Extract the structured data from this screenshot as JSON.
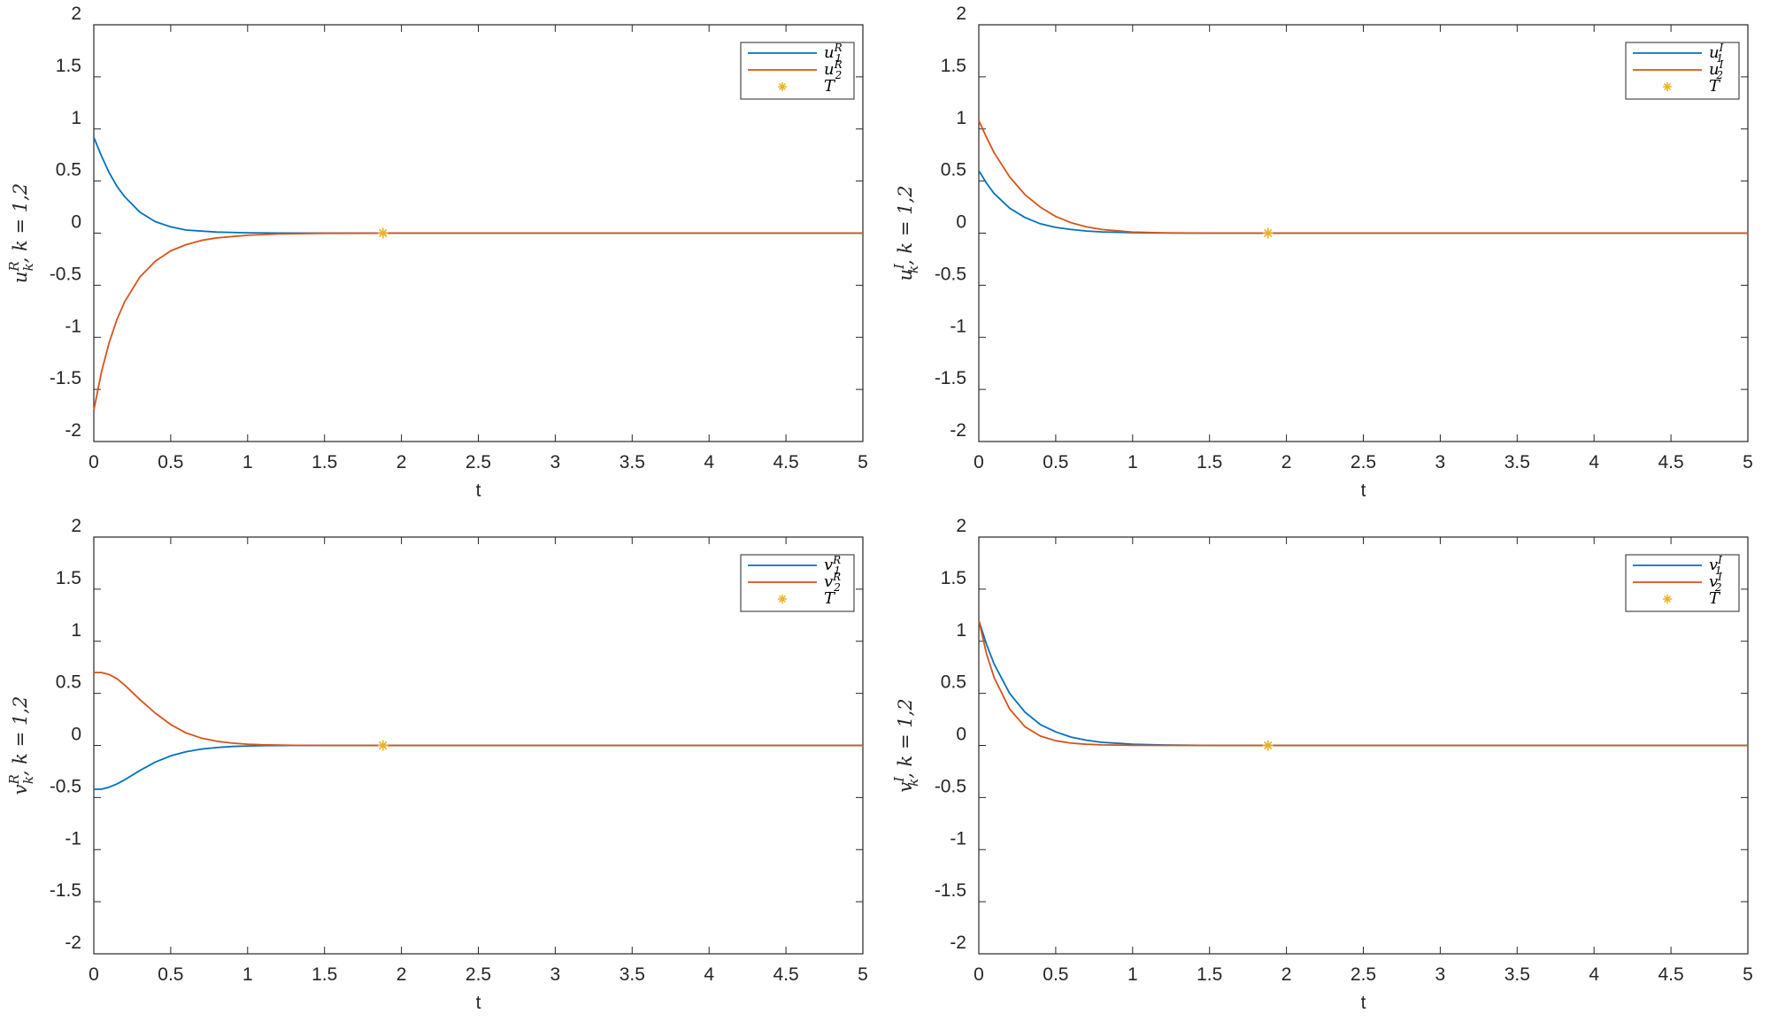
{
  "colors": {
    "series1": "#0072BD",
    "series2": "#D95319",
    "marker": "#EDB120",
    "axis": "#262626"
  },
  "chart_data": [
    {
      "type": "line",
      "panel": "top-left",
      "xlabel": "t",
      "ylabel": "u_k^R, k = 1,2",
      "xlim": [
        0,
        5
      ],
      "ylim": [
        -2,
        2
      ],
      "xticks": [
        "0",
        "0.5",
        "1",
        "1.5",
        "2",
        "2.5",
        "3",
        "3.5",
        "4",
        "4.5",
        "5"
      ],
      "yticks": [
        "-2",
        "-1.5",
        "-1",
        "-0.5",
        "0",
        "0.5",
        "1",
        "1.5",
        "2"
      ],
      "grid": false,
      "legend_position": "top-right",
      "series": [
        {
          "name": "u_1^R",
          "color": "#0072BD",
          "x": [
            0,
            0.05,
            0.1,
            0.15,
            0.2,
            0.3,
            0.4,
            0.5,
            0.6,
            0.8,
            1.0,
            1.2,
            1.5,
            2,
            3,
            4,
            5
          ],
          "y": [
            0.92,
            0.74,
            0.58,
            0.45,
            0.35,
            0.2,
            0.11,
            0.06,
            0.03,
            0.01,
            0.003,
            0.001,
            0,
            0,
            0,
            0,
            0
          ]
        },
        {
          "name": "u_2^R",
          "color": "#D95319",
          "x": [
            0,
            0.05,
            0.1,
            0.15,
            0.2,
            0.3,
            0.4,
            0.5,
            0.6,
            0.7,
            0.8,
            1.0,
            1.2,
            1.5,
            2,
            3,
            4,
            5
          ],
          "y": [
            -1.7,
            -1.33,
            -1.05,
            -0.83,
            -0.66,
            -0.42,
            -0.27,
            -0.17,
            -0.11,
            -0.07,
            -0.045,
            -0.02,
            -0.008,
            -0.002,
            0,
            0,
            0,
            0
          ]
        },
        {
          "name": "T",
          "color": "#EDB120",
          "marker": "asterisk",
          "x": [
            1.88
          ],
          "y": [
            0
          ]
        }
      ],
      "legend": [
        {
          "text": "u_1^R",
          "sym": "u",
          "sup": "R",
          "sub": "1"
        },
        {
          "text": "u_2^R",
          "sym": "u",
          "sup": "R",
          "sub": "2"
        },
        {
          "text": "T",
          "sym": "T",
          "sup": "",
          "sub": ""
        }
      ]
    },
    {
      "type": "line",
      "panel": "top-right",
      "xlabel": "t",
      "ylabel": "u_k^I, k = 1,2",
      "xlim": [
        0,
        5
      ],
      "ylim": [
        -2,
        2
      ],
      "xticks": [
        "0",
        "0.5",
        "1",
        "1.5",
        "2",
        "2.5",
        "3",
        "3.5",
        "4",
        "4.5",
        "5"
      ],
      "yticks": [
        "-2",
        "-1.5",
        "-1",
        "-0.5",
        "0",
        "0.5",
        "1",
        "1.5",
        "2"
      ],
      "grid": false,
      "legend_position": "top-right",
      "series": [
        {
          "name": "u_1^I",
          "color": "#0072BD",
          "x": [
            0,
            0.05,
            0.1,
            0.2,
            0.3,
            0.4,
            0.5,
            0.6,
            0.7,
            0.8,
            1.0,
            1.2,
            1.5,
            2,
            3,
            4,
            5
          ],
          "y": [
            0.6,
            0.48,
            0.38,
            0.24,
            0.15,
            0.09,
            0.055,
            0.035,
            0.02,
            0.012,
            0.004,
            0.001,
            0,
            0,
            0,
            0,
            0
          ]
        },
        {
          "name": "u_2^I",
          "color": "#D95319",
          "x": [
            0,
            0.05,
            0.1,
            0.2,
            0.3,
            0.4,
            0.5,
            0.6,
            0.7,
            0.8,
            1.0,
            1.2,
            1.5,
            2,
            3,
            4,
            5
          ],
          "y": [
            1.08,
            0.92,
            0.77,
            0.54,
            0.37,
            0.25,
            0.16,
            0.1,
            0.06,
            0.035,
            0.01,
            0.003,
            0,
            0,
            0,
            0,
            0
          ]
        },
        {
          "name": "T",
          "color": "#EDB120",
          "marker": "asterisk",
          "x": [
            1.88
          ],
          "y": [
            0
          ]
        }
      ],
      "legend": [
        {
          "text": "u_1^I",
          "sym": "u",
          "sup": "I",
          "sub": "1"
        },
        {
          "text": "u_2^I",
          "sym": "u",
          "sup": "I",
          "sub": "2"
        },
        {
          "text": "T",
          "sym": "T",
          "sup": "",
          "sub": ""
        }
      ]
    },
    {
      "type": "line",
      "panel": "bottom-left",
      "xlabel": "t",
      "ylabel": "v_k^R, k = 1,2",
      "xlim": [
        0,
        5
      ],
      "ylim": [
        -2,
        2
      ],
      "xticks": [
        "0",
        "0.5",
        "1",
        "1.5",
        "2",
        "2.5",
        "3",
        "3.5",
        "4",
        "4.5",
        "5"
      ],
      "yticks": [
        "-2",
        "-1.5",
        "-1",
        "-0.5",
        "0",
        "0.5",
        "1",
        "1.5",
        "2"
      ],
      "grid": false,
      "legend_position": "top-right",
      "series": [
        {
          "name": "v_1^R",
          "color": "#0072BD",
          "x": [
            0,
            0.05,
            0.1,
            0.15,
            0.2,
            0.3,
            0.4,
            0.5,
            0.6,
            0.7,
            0.8,
            0.9,
            1.0,
            1.1,
            1.3,
            1.5,
            2,
            3,
            4,
            5
          ],
          "y": [
            -0.42,
            -0.42,
            -0.4,
            -0.37,
            -0.33,
            -0.24,
            -0.16,
            -0.1,
            -0.06,
            -0.035,
            -0.02,
            -0.01,
            -0.005,
            -0.002,
            0,
            0,
            0,
            0,
            0,
            0
          ]
        },
        {
          "name": "v_2^R",
          "color": "#D95319",
          "x": [
            0,
            0.05,
            0.1,
            0.15,
            0.2,
            0.3,
            0.4,
            0.5,
            0.6,
            0.7,
            0.8,
            0.9,
            1.0,
            1.1,
            1.3,
            1.5,
            2,
            3,
            4,
            5
          ],
          "y": [
            0.7,
            0.7,
            0.68,
            0.64,
            0.58,
            0.44,
            0.31,
            0.2,
            0.12,
            0.07,
            0.04,
            0.022,
            0.012,
            0.006,
            0.001,
            0,
            0,
            0,
            0,
            0
          ]
        },
        {
          "name": "T",
          "color": "#EDB120",
          "marker": "asterisk",
          "x": [
            1.88
          ],
          "y": [
            0
          ]
        }
      ],
      "legend": [
        {
          "text": "v_1^R",
          "sym": "v",
          "sup": "R",
          "sub": "1"
        },
        {
          "text": "v_2^R",
          "sym": "v",
          "sup": "R",
          "sub": "2"
        },
        {
          "text": "T",
          "sym": "T",
          "sup": "",
          "sub": ""
        }
      ]
    },
    {
      "type": "line",
      "panel": "bottom-right",
      "xlabel": "t",
      "ylabel": "v_k^I, k = 1,2",
      "xlim": [
        0,
        5
      ],
      "ylim": [
        -2,
        2
      ],
      "xticks": [
        "0",
        "0.5",
        "1",
        "1.5",
        "2",
        "2.5",
        "3",
        "3.5",
        "4",
        "4.5",
        "5"
      ],
      "yticks": [
        "-2",
        "-1.5",
        "-1",
        "-0.5",
        "0",
        "0.5",
        "1",
        "1.5",
        "2"
      ],
      "grid": false,
      "legend_position": "top-right",
      "series": [
        {
          "name": "v_1^I",
          "color": "#0072BD",
          "x": [
            0,
            0.05,
            0.1,
            0.2,
            0.3,
            0.4,
            0.5,
            0.6,
            0.7,
            0.8,
            1.0,
            1.2,
            1.5,
            2,
            3,
            4,
            5
          ],
          "y": [
            1.2,
            0.97,
            0.78,
            0.5,
            0.32,
            0.2,
            0.13,
            0.08,
            0.05,
            0.03,
            0.012,
            0.004,
            0,
            0,
            0,
            0,
            0
          ]
        },
        {
          "name": "v_2^I",
          "color": "#D95319",
          "x": [
            0,
            0.05,
            0.1,
            0.2,
            0.3,
            0.4,
            0.5,
            0.6,
            0.7,
            0.8,
            1.0,
            1.2,
            1.5,
            2,
            3,
            4,
            5
          ],
          "y": [
            1.2,
            0.88,
            0.65,
            0.35,
            0.18,
            0.09,
            0.045,
            0.022,
            0.011,
            0.005,
            0.001,
            0,
            0,
            0,
            0,
            0,
            0
          ]
        },
        {
          "name": "T",
          "color": "#EDB120",
          "marker": "asterisk",
          "x": [
            1.88
          ],
          "y": [
            0
          ]
        }
      ],
      "legend": [
        {
          "text": "v_1^I",
          "sym": "v",
          "sup": "I",
          "sub": "1"
        },
        {
          "text": "v_2^I",
          "sym": "v",
          "sup": "I",
          "sub": "2"
        },
        {
          "text": "T",
          "sym": "T",
          "sup": "",
          "sub": ""
        }
      ]
    }
  ]
}
